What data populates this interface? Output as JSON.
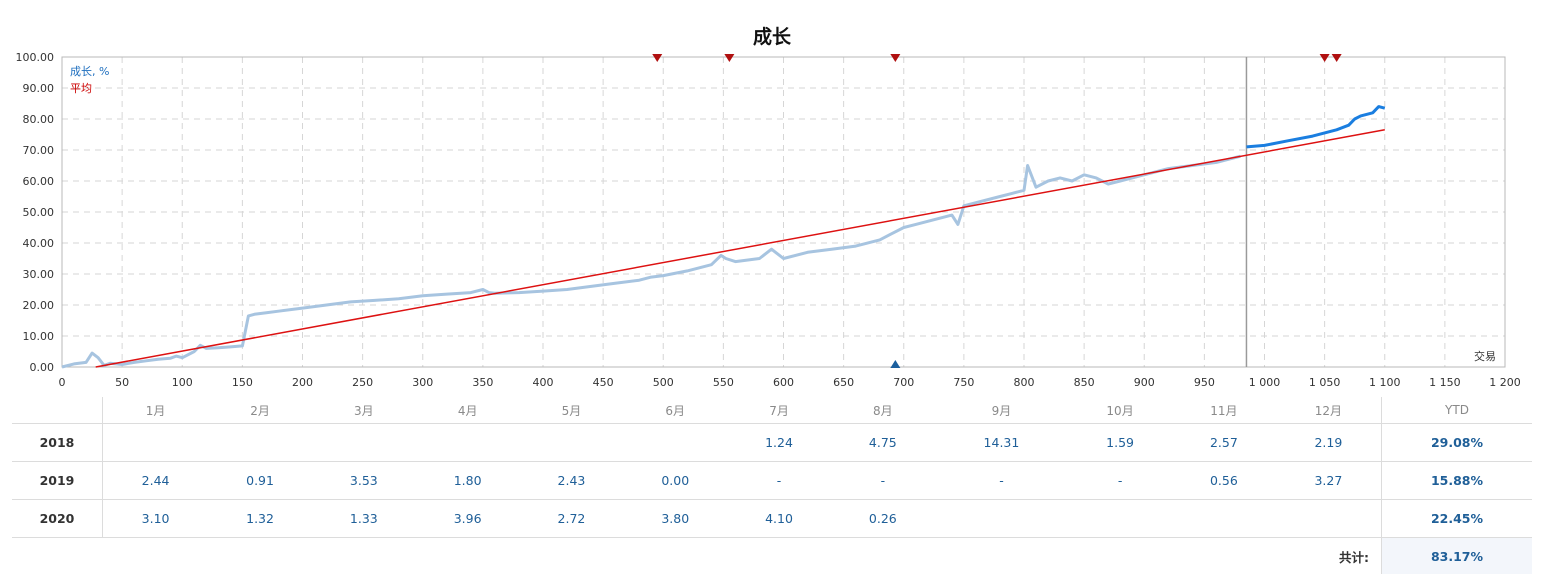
{
  "chart_data": {
    "type": "line",
    "title": "成长",
    "xlabel": "交易",
    "ylabel": "",
    "xlim": [
      0,
      1200
    ],
    "ylim": [
      0,
      100
    ],
    "x_ticks": [
      "0",
      "50",
      "100",
      "150",
      "200",
      "250",
      "300",
      "350",
      "400",
      "450",
      "500",
      "550",
      "600",
      "650",
      "700",
      "750",
      "800",
      "850",
      "900",
      "950",
      "1 000",
      "1 050",
      "1 100",
      "1 150",
      "1 200"
    ],
    "y_ticks": [
      "0.00",
      "10.00",
      "20.00",
      "30.00",
      "40.00",
      "50.00",
      "60.00",
      "70.00",
      "80.00",
      "90.00",
      "100.00"
    ],
    "grid": true,
    "legend": [
      {
        "label": "成长, %",
        "color": "#1f6fbf"
      },
      {
        "label": "平均",
        "color": "#cc0000"
      }
    ],
    "series": [
      {
        "name": "成长, %",
        "color": "#a7c4e0",
        "x": [
          0,
          10,
          20,
          25,
          30,
          35,
          40,
          50,
          60,
          70,
          80,
          90,
          95,
          100,
          110,
          115,
          120,
          130,
          140,
          150,
          155,
          160,
          170,
          180,
          190,
          200,
          220,
          240,
          260,
          280,
          300,
          320,
          340,
          350,
          355,
          360,
          380,
          400,
          420,
          440,
          460,
          480,
          490,
          500,
          520,
          540,
          548,
          552,
          560,
          580,
          590,
          600,
          620,
          640,
          660,
          680,
          690,
          700,
          710,
          720,
          730,
          740,
          745,
          750,
          760,
          780,
          790,
          800,
          803,
          810,
          820,
          830,
          840,
          850,
          860,
          870,
          880,
          890,
          900,
          920,
          940,
          960,
          980
        ],
        "values": [
          0,
          1,
          1.5,
          4.5,
          3,
          0.5,
          1.2,
          0.8,
          1.5,
          2,
          2.5,
          2.8,
          3.5,
          3,
          5,
          7,
          6,
          6.2,
          6.5,
          6.8,
          16.5,
          17,
          17.5,
          18,
          18.5,
          19,
          20,
          21,
          21.5,
          22,
          23,
          23.5,
          24,
          25,
          24,
          23.8,
          24,
          24.5,
          25,
          26,
          27,
          28,
          29,
          29.5,
          31,
          33,
          36,
          35,
          34,
          35,
          38,
          35,
          37,
          38,
          39,
          41,
          43,
          45,
          46,
          47,
          48,
          49,
          46,
          52,
          53,
          55,
          56,
          57,
          65,
          58,
          60,
          61,
          60,
          62,
          61,
          59,
          60,
          61,
          62,
          64,
          65,
          66,
          68
        ]
      },
      {
        "name": "成长, % (recent)",
        "color": "#1a7ee0",
        "x": [
          985,
          1000,
          1020,
          1040,
          1050,
          1060,
          1070,
          1075,
          1080,
          1090,
          1095,
          1100
        ],
        "values": [
          71,
          71.5,
          73,
          74.5,
          75.5,
          76.5,
          78,
          80,
          81,
          82,
          84,
          83.5
        ]
      },
      {
        "name": "平均",
        "color": "#dd1111",
        "x": [
          28,
          1100
        ],
        "values": [
          0,
          76.5
        ]
      }
    ],
    "markers": {
      "top_down": [
        495,
        555,
        693,
        1050,
        1060
      ],
      "bottom_up": [
        693
      ],
      "vertical_line_x": 985
    }
  },
  "table": {
    "months": [
      "1月",
      "2月",
      "3月",
      "4月",
      "5月",
      "6月",
      "7月",
      "8月",
      "9月",
      "10月",
      "11月",
      "12月"
    ],
    "ytd_label": "YTD",
    "rows": [
      {
        "year": "2018",
        "values": [
          "",
          "",
          "",
          "",
          "",
          "",
          "1.24",
          "4.75",
          "14.31",
          "1.59",
          "2.57",
          "2.19"
        ],
        "ytd": "29.08%"
      },
      {
        "year": "2019",
        "values": [
          "2.44",
          "0.91",
          "3.53",
          "1.80",
          "2.43",
          "0.00",
          "-",
          "-",
          "-",
          "-",
          "0.56",
          "3.27"
        ],
        "ytd": "15.88%"
      },
      {
        "year": "2020",
        "values": [
          "3.10",
          "1.32",
          "1.33",
          "3.96",
          "2.72",
          "3.80",
          "4.10",
          "0.26",
          "",
          "",
          "",
          ""
        ],
        "ytd": "22.45%"
      }
    ],
    "total_label": "共计:",
    "total_value": "83.17%"
  }
}
